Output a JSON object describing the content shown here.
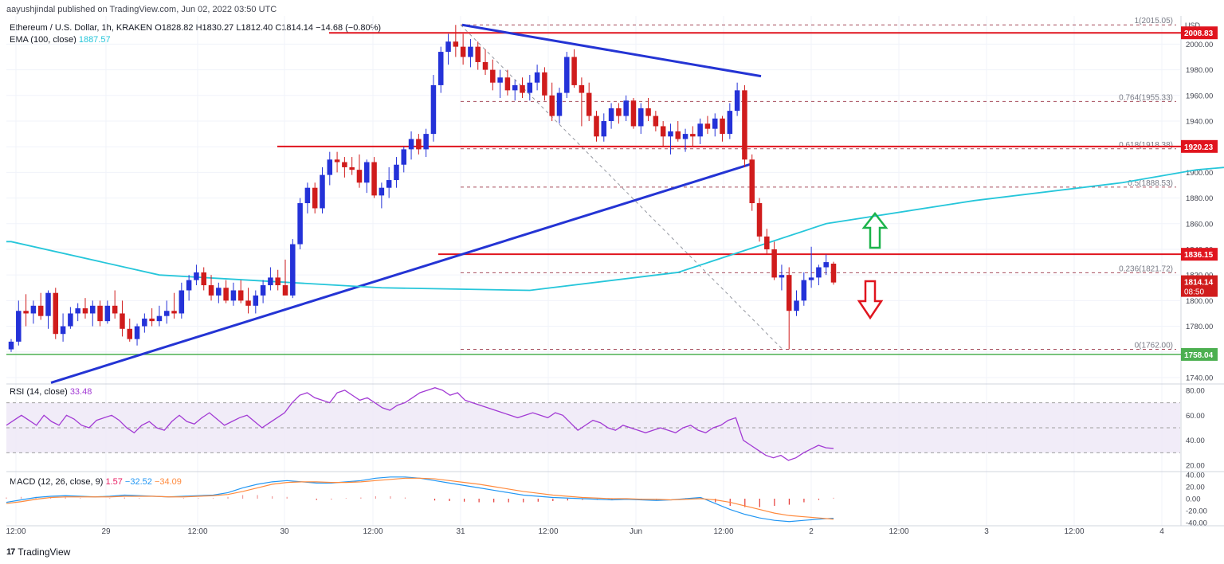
{
  "attribution": "aayushjindal published on TradingView.com, Jun 02, 2022 03:50 UTC",
  "symbol_line": {
    "name": "Ethereum / U.S. Dollar, 1h, KRAKEN",
    "open": "O1828.82",
    "high": "H1830.27",
    "low": "L1812.40",
    "close": "C1814.14",
    "change": "−14.68 (−0.80%)"
  },
  "ema_line": {
    "label": "EMA (100, close)",
    "value": "1887.57"
  },
  "rsi_line": {
    "label": "RSI (14, close)",
    "value": "33.48"
  },
  "macd_line": {
    "label": "MACD (12, 26, close, 9)",
    "v1": "1.57",
    "v2": "−32.52",
    "v3": "−34.09"
  },
  "brand": "TradingView",
  "colors": {
    "up": "#089981",
    "down": "#f23645",
    "candle_up": "#2432d8",
    "candle_down": "#d01c1c",
    "ema": "#26c6da",
    "trendline": "#2434d4",
    "level": "#e0141e",
    "support": "#4caf50",
    "rsi": "#a23ad4",
    "macd": "#2196f3",
    "signal": "#ff8a3d"
  },
  "chart_data": [
    {
      "type": "candlestick",
      "title": "Ethereum / U.S. Dollar, 1h, KRAKEN",
      "x_ticks": [
        "12:00",
        "29",
        "12:00",
        "30",
        "12:00",
        "31",
        "12:00",
        "Jun",
        "12:00",
        "2",
        "12:00",
        "3",
        "12:00",
        "4"
      ],
      "y_axis": {
        "unit": "USD",
        "range": [
          1735,
          2022
        ],
        "ticks": [
          1740,
          1760,
          1780,
          1800,
          1820,
          1840,
          1860,
          1880,
          1900,
          1920,
          1940,
          1960,
          1980,
          2000
        ]
      },
      "ohlc": [
        [
          1762,
          1770,
          1760,
          1768
        ],
        [
          1768,
          1800,
          1765,
          1792
        ],
        [
          1792,
          1805,
          1780,
          1790
        ],
        [
          1790,
          1800,
          1782,
          1796
        ],
        [
          1796,
          1806,
          1785,
          1788
        ],
        [
          1788,
          1808,
          1778,
          1806
        ],
        [
          1806,
          1810,
          1770,
          1774
        ],
        [
          1774,
          1790,
          1768,
          1780
        ],
        [
          1780,
          1795,
          1778,
          1790
        ],
        [
          1790,
          1798,
          1784,
          1794
        ],
        [
          1794,
          1802,
          1786,
          1790
        ],
        [
          1790,
          1800,
          1780,
          1796
        ],
        [
          1796,
          1800,
          1780,
          1784
        ],
        [
          1784,
          1800,
          1782,
          1796
        ],
        [
          1796,
          1808,
          1786,
          1790
        ],
        [
          1790,
          1800,
          1772,
          1778
        ],
        [
          1778,
          1786,
          1768,
          1770
        ],
        [
          1770,
          1782,
          1765,
          1780
        ],
        [
          1780,
          1790,
          1775,
          1786
        ],
        [
          1786,
          1794,
          1780,
          1784
        ],
        [
          1784,
          1796,
          1780,
          1788
        ],
        [
          1788,
          1800,
          1782,
          1792
        ],
        [
          1792,
          1806,
          1786,
          1790
        ],
        [
          1790,
          1814,
          1786,
          1808
        ],
        [
          1808,
          1820,
          1800,
          1816
        ],
        [
          1816,
          1828,
          1812,
          1822
        ],
        [
          1822,
          1826,
          1808,
          1812
        ],
        [
          1812,
          1820,
          1800,
          1804
        ],
        [
          1804,
          1814,
          1798,
          1810
        ],
        [
          1810,
          1816,
          1798,
          1800
        ],
        [
          1800,
          1814,
          1796,
          1808
        ],
        [
          1808,
          1816,
          1798,
          1800
        ],
        [
          1800,
          1810,
          1790,
          1796
        ],
        [
          1796,
          1808,
          1790,
          1804
        ],
        [
          1804,
          1816,
          1798,
          1812
        ],
        [
          1812,
          1826,
          1808,
          1818
        ],
        [
          1818,
          1824,
          1808,
          1812
        ],
        [
          1812,
          1832,
          1806,
          1804
        ],
        [
          1804,
          1848,
          1802,
          1844
        ],
        [
          1844,
          1880,
          1840,
          1876
        ],
        [
          1876,
          1892,
          1868,
          1888
        ],
        [
          1888,
          1892,
          1868,
          1872
        ],
        [
          1872,
          1904,
          1868,
          1898
        ],
        [
          1898,
          1916,
          1890,
          1910
        ],
        [
          1910,
          1916,
          1900,
          1908
        ],
        [
          1908,
          1912,
          1896,
          1904
        ],
        [
          1904,
          1912,
          1898,
          1902
        ],
        [
          1902,
          1914,
          1888,
          1892
        ],
        [
          1892,
          1910,
          1884,
          1908
        ],
        [
          1908,
          1912,
          1880,
          1882
        ],
        [
          1882,
          1892,
          1872,
          1888
        ],
        [
          1888,
          1904,
          1880,
          1894
        ],
        [
          1894,
          1912,
          1888,
          1906
        ],
        [
          1906,
          1920,
          1900,
          1918
        ],
        [
          1918,
          1932,
          1910,
          1926
        ],
        [
          1926,
          1930,
          1914,
          1918
        ],
        [
          1918,
          1934,
          1912,
          1930
        ],
        [
          1930,
          1976,
          1924,
          1968
        ],
        [
          1968,
          1998,
          1962,
          1994
        ],
        [
          1994,
          2008,
          1984,
          2002
        ],
        [
          2002,
          2015,
          1990,
          1998
        ],
        [
          1998,
          2008,
          1984,
          1990
        ],
        [
          1990,
          2004,
          1982,
          1998
        ],
        [
          1998,
          2002,
          1980,
          1986
        ],
        [
          1986,
          1996,
          1976,
          1980
        ],
        [
          1980,
          1988,
          1964,
          1970
        ],
        [
          1970,
          1980,
          1958,
          1974
        ],
        [
          1974,
          1980,
          1960,
          1964
        ],
        [
          1964,
          1972,
          1956,
          1968
        ],
        [
          1968,
          1974,
          1958,
          1962
        ],
        [
          1962,
          1976,
          1956,
          1970
        ],
        [
          1970,
          1984,
          1964,
          1978
        ],
        [
          1978,
          1982,
          1956,
          1960
        ],
        [
          1960,
          1970,
          1940,
          1944
        ],
        [
          1944,
          1966,
          1938,
          1962
        ],
        [
          1962,
          1994,
          1958,
          1990
        ],
        [
          1990,
          1996,
          1966,
          1968
        ],
        [
          1968,
          1974,
          1936,
          1962
        ],
        [
          1962,
          1970,
          1940,
          1944
        ],
        [
          1944,
          1948,
          1924,
          1928
        ],
        [
          1928,
          1946,
          1924,
          1940
        ],
        [
          1940,
          1954,
          1934,
          1950
        ],
        [
          1950,
          1954,
          1938,
          1944
        ],
        [
          1944,
          1960,
          1940,
          1956
        ],
        [
          1956,
          1958,
          1934,
          1936
        ],
        [
          1936,
          1954,
          1930,
          1950
        ],
        [
          1950,
          1958,
          1940,
          1944
        ],
        [
          1944,
          1948,
          1932,
          1936
        ],
        [
          1936,
          1940,
          1920,
          1928
        ],
        [
          1928,
          1938,
          1914,
          1932
        ],
        [
          1932,
          1940,
          1924,
          1926
        ],
        [
          1926,
          1934,
          1916,
          1930
        ],
        [
          1930,
          1936,
          1920,
          1928
        ],
        [
          1928,
          1942,
          1922,
          1938
        ],
        [
          1938,
          1944,
          1930,
          1934
        ],
        [
          1934,
          1946,
          1928,
          1942
        ],
        [
          1942,
          1944,
          1924,
          1930
        ],
        [
          1930,
          1954,
          1926,
          1948
        ],
        [
          1948,
          1970,
          1944,
          1964
        ],
        [
          1964,
          1968,
          1904,
          1910
        ],
        [
          1910,
          1914,
          1870,
          1876
        ],
        [
          1876,
          1880,
          1846,
          1850
        ],
        [
          1850,
          1856,
          1836,
          1840
        ],
        [
          1840,
          1846,
          1816,
          1818
        ],
        [
          1818,
          1828,
          1808,
          1820
        ],
        [
          1820,
          1826,
          1762,
          1792
        ],
        [
          1792,
          1808,
          1788,
          1800
        ],
        [
          1800,
          1822,
          1796,
          1816
        ],
        [
          1816,
          1842,
          1810,
          1818
        ],
        [
          1818,
          1828,
          1812,
          1826
        ],
        [
          1826,
          1836,
          1820,
          1830
        ],
        [
          1828.82,
          1830.27,
          1812.4,
          1814.14
        ]
      ],
      "ema_100": [
        [
          0,
          1846
        ],
        [
          20,
          1820
        ],
        [
          50,
          1810
        ],
        [
          70,
          1808
        ],
        [
          90,
          1822
        ],
        [
          110,
          1860
        ],
        [
          130,
          1878
        ],
        [
          150,
          1892
        ],
        [
          160,
          1902
        ],
        [
          168,
          1906
        ],
        [
          172,
          1900
        ],
        [
          175,
          1892
        ],
        [
          178,
          1887.57
        ]
      ],
      "horizontal_levels": [
        2008.83,
        1920.23,
        1836.15,
        1758.04
      ],
      "price_labels": [
        "2008.83",
        "1920.23",
        "1836.15",
        "1814.14",
        "08:50",
        "1758.04"
      ],
      "fibonacci": [
        {
          "label": "1(2015.05)",
          "value": 2015.05
        },
        {
          "label": "0.764(1955.33)",
          "value": 1955.33
        },
        {
          "label": "0.618(1918.38)",
          "value": 1918.38
        },
        {
          "label": "0.5(1888.53)",
          "value": 1888.53
        },
        {
          "label": "0.236(1821.72)",
          "value": 1821.72
        },
        {
          "label": "0(1762.00)",
          "value": 1762.0
        }
      ],
      "trendlines": [
        {
          "name": "resistance",
          "from": [
            1814,
            2015
          ],
          "to": [
            1835,
            1975
          ]
        },
        {
          "name": "support",
          "from": [
            1774,
            1736
          ],
          "to": [
            1851,
            1907
          ]
        }
      ],
      "annotations": [
        "up-arrow",
        "down-arrow"
      ]
    },
    {
      "type": "line",
      "title": "RSI (14, close)",
      "y_axis": {
        "range": [
          15,
          85
        ],
        "ticks": [
          20,
          40,
          60,
          80
        ]
      },
      "band": [
        30,
        70
      ],
      "values": [
        52,
        56,
        60,
        56,
        52,
        60,
        55,
        52,
        60,
        57,
        52,
        50,
        56,
        58,
        60,
        56,
        50,
        46,
        52,
        55,
        50,
        48,
        55,
        60,
        55,
        53,
        58,
        62,
        57,
        52,
        55,
        58,
        60,
        55,
        50,
        54,
        58,
        62,
        70,
        76,
        78,
        74,
        72,
        70,
        78,
        80,
        76,
        72,
        74,
        70,
        66,
        64,
        68,
        70,
        74,
        78,
        80,
        82,
        80,
        76,
        78,
        72,
        70,
        68,
        66,
        64,
        62,
        60,
        58,
        60,
        62,
        60,
        58,
        62,
        60,
        54,
        48,
        52,
        56,
        54,
        50,
        48,
        52,
        50,
        48,
        46,
        48,
        50,
        48,
        46,
        50,
        52,
        48,
        46,
        50,
        52,
        56,
        58,
        40,
        36,
        32,
        28,
        26,
        28,
        24,
        26,
        30,
        33,
        36,
        34,
        33.48
      ]
    },
    {
      "type": "line",
      "title": "MACD (12, 26, close, 9)",
      "y_axis": {
        "range": [
          -45,
          45
        ],
        "ticks": [
          -40,
          -20,
          0,
          20,
          40
        ]
      },
      "series": [
        {
          "name": "MACD",
          "values": [
            -6,
            -2,
            2,
            4,
            5,
            4,
            3,
            4,
            6,
            5,
            4,
            3,
            4,
            5,
            6,
            10,
            18,
            24,
            28,
            30,
            28,
            26,
            26,
            28,
            30,
            34,
            36,
            36,
            34,
            30,
            26,
            22,
            18,
            14,
            10,
            6,
            4,
            2,
            1,
            0,
            -1,
            -2,
            -1,
            -2,
            -3,
            -2,
            0,
            2,
            -8,
            -18,
            -26,
            -32,
            -36,
            -38,
            -36,
            -34,
            -32.52
          ]
        },
        {
          "name": "Signal",
          "values": [
            -8,
            -5,
            -1,
            2,
            3,
            3,
            3,
            3,
            4,
            4,
            4,
            3,
            3,
            4,
            5,
            7,
            12,
            18,
            24,
            27,
            28,
            28,
            27,
            27,
            28,
            30,
            32,
            34,
            34,
            33,
            30,
            27,
            24,
            20,
            16,
            12,
            9,
            6,
            4,
            2,
            1,
            0,
            0,
            -1,
            -1,
            -2,
            -1,
            0,
            -2,
            -6,
            -12,
            -18,
            -24,
            -28,
            -30,
            -32,
            -34.09
          ]
        }
      ],
      "histogram": [
        2,
        3,
        3,
        2,
        2,
        1,
        0,
        1,
        2,
        1,
        0,
        0,
        1,
        1,
        1,
        3,
        6,
        6,
        4,
        3,
        0,
        -2,
        -1,
        1,
        2,
        4,
        4,
        2,
        0,
        -3,
        -4,
        -5,
        -6,
        -6,
        -6,
        -6,
        -5,
        -4,
        -3,
        -2,
        -2,
        -2,
        -1,
        -1,
        -2,
        0,
        1,
        2,
        -6,
        -12,
        -14,
        -14,
        -12,
        -10,
        -6,
        -2,
        1.57
      ]
    }
  ]
}
